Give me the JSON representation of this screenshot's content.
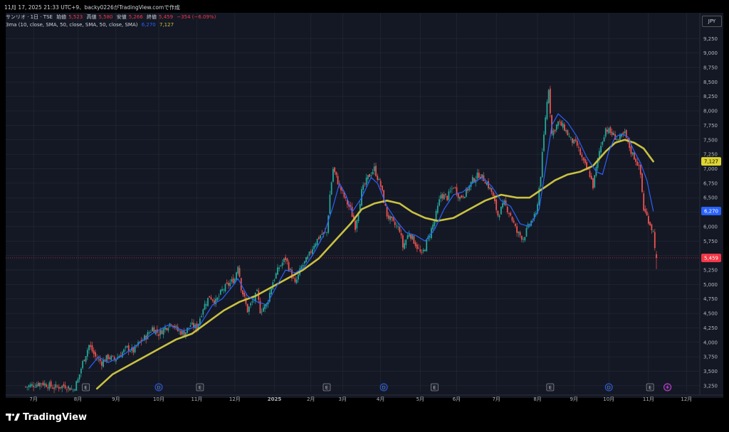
{
  "header": {
    "title": "11月 17, 2025 21:33 UTC+9、backy0226がTradingView.comで作成"
  },
  "symbol_line": {
    "name": "サンリオ · 1日 · TSE",
    "open_label": "始値",
    "open": "5,523",
    "high_label": "高値",
    "high": "5,580",
    "low_label": "安値",
    "low": "5,266",
    "close_label": "終値",
    "close": "5,459",
    "change": "−354 (−6.09%)"
  },
  "indicator_line": {
    "label": "3ma (10, close, SMA, 50, close, SMA, 50, close, SMA)",
    "value1": "6,270",
    "value2": "7,127"
  },
  "currency": "JPY",
  "brand": "TradingView",
  "colors": {
    "background": "#141824",
    "grid": "#2a2e39",
    "up": "#26a69a",
    "down": "#ef5350",
    "ma_fast": "#2962ff",
    "ma_slow": "#c9c142",
    "last_price": "#f23645"
  },
  "chart_data": {
    "type": "candlestick",
    "y_ticks": [
      "9,250",
      "9,000",
      "8,750",
      "8,500",
      "8,250",
      "8,000",
      "7,750",
      "7,500",
      "7,250",
      "7,000",
      "6,750",
      "6,500",
      "6,250",
      "6,000",
      "5,750",
      "5,500",
      "5,250",
      "5,000",
      "4,750",
      "4,500",
      "4,250",
      "4,000",
      "3,750",
      "3,500",
      "3,250"
    ],
    "y_tick_values": [
      9250,
      9000,
      8750,
      8500,
      8250,
      8000,
      7750,
      7500,
      7250,
      7000,
      6750,
      6500,
      6250,
      6000,
      5750,
      5500,
      5250,
      5000,
      4750,
      4500,
      4250,
      4000,
      3750,
      3500,
      3250
    ],
    "ylim": [
      3150,
      9450
    ],
    "x_labels": [
      {
        "label": "7月",
        "day": 5
      },
      {
        "label": "8月",
        "day": 33
      },
      {
        "label": "9月",
        "day": 57
      },
      {
        "label": "10月",
        "day": 84
      },
      {
        "label": "11月",
        "day": 108
      },
      {
        "label": "12月",
        "day": 132
      },
      {
        "label": "2025",
        "day": 157
      },
      {
        "label": "2月",
        "day": 180
      },
      {
        "label": "3月",
        "day": 200
      },
      {
        "label": "4月",
        "day": 224
      },
      {
        "label": "5月",
        "day": 249
      },
      {
        "label": "6月",
        "day": 272
      },
      {
        "label": "7月",
        "day": 297
      },
      {
        "label": "8月",
        "day": 323
      },
      {
        "label": "9月",
        "day": 346
      },
      {
        "label": "10月",
        "day": 368
      },
      {
        "label": "11月",
        "day": 393
      },
      {
        "label": "12月",
        "day": 417
      }
    ],
    "price_path": [
      [
        0,
        3230
      ],
      [
        10,
        3300
      ],
      [
        18,
        3220
      ],
      [
        25,
        3250
      ],
      [
        30,
        3180
      ],
      [
        33,
        3350
      ],
      [
        36,
        3650
      ],
      [
        40,
        3950
      ],
      [
        44,
        3750
      ],
      [
        48,
        3650
      ],
      [
        52,
        3750
      ],
      [
        56,
        3700
      ],
      [
        60,
        3800
      ],
      [
        64,
        3900
      ],
      [
        68,
        3850
      ],
      [
        72,
        4000
      ],
      [
        76,
        4100
      ],
      [
        80,
        4250
      ],
      [
        84,
        4150
      ],
      [
        88,
        4250
      ],
      [
        92,
        4350
      ],
      [
        96,
        4200
      ],
      [
        100,
        4150
      ],
      [
        104,
        4300
      ],
      [
        108,
        4250
      ],
      [
        112,
        4600
      ],
      [
        116,
        4800
      ],
      [
        120,
        4700
      ],
      [
        124,
        4900
      ],
      [
        128,
        5000
      ],
      [
        132,
        5100
      ],
      [
        134,
        5350
      ],
      [
        136,
        4950
      ],
      [
        140,
        4550
      ],
      [
        144,
        4750
      ],
      [
        146,
        4850
      ],
      [
        148,
        4550
      ],
      [
        152,
        4650
      ],
      [
        156,
        5050
      ],
      [
        160,
        5300
      ],
      [
        164,
        5450
      ],
      [
        168,
        5150
      ],
      [
        170,
        5000
      ],
      [
        174,
        5300
      ],
      [
        178,
        5450
      ],
      [
        182,
        5700
      ],
      [
        186,
        5850
      ],
      [
        190,
        5900
      ],
      [
        192,
        6550
      ],
      [
        194,
        7000
      ],
      [
        198,
        6700
      ],
      [
        202,
        6450
      ],
      [
        205,
        6300
      ],
      [
        208,
        6000
      ],
      [
        212,
        6600
      ],
      [
        216,
        6850
      ],
      [
        220,
        7000
      ],
      [
        224,
        6700
      ],
      [
        228,
        6200
      ],
      [
        232,
        6050
      ],
      [
        236,
        5950
      ],
      [
        238,
        5650
      ],
      [
        242,
        5900
      ],
      [
        246,
        5700
      ],
      [
        250,
        5500
      ],
      [
        254,
        5800
      ],
      [
        258,
        6100
      ],
      [
        262,
        6550
      ],
      [
        266,
        6500
      ],
      [
        270,
        6700
      ],
      [
        274,
        6500
      ],
      [
        278,
        6600
      ],
      [
        282,
        6800
      ],
      [
        286,
        6900
      ],
      [
        290,
        6800
      ],
      [
        294,
        6600
      ],
      [
        298,
        6200
      ],
      [
        302,
        6400
      ],
      [
        306,
        6200
      ],
      [
        310,
        5900
      ],
      [
        314,
        5800
      ],
      [
        318,
        6050
      ],
      [
        322,
        6200
      ],
      [
        325,
        6900
      ],
      [
        328,
        7900
      ],
      [
        330,
        8400
      ],
      [
        332,
        7600
      ],
      [
        336,
        7800
      ],
      [
        340,
        7700
      ],
      [
        344,
        7500
      ],
      [
        348,
        7400
      ],
      [
        352,
        7100
      ],
      [
        356,
        6900
      ],
      [
        358,
        6700
      ],
      [
        362,
        7300
      ],
      [
        366,
        7700
      ],
      [
        370,
        7600
      ],
      [
        374,
        7500
      ],
      [
        378,
        7600
      ],
      [
        382,
        7300
      ],
      [
        386,
        7100
      ],
      [
        388,
        6900
      ],
      [
        390,
        6300
      ],
      [
        394,
        6050
      ],
      [
        396,
        5900
      ],
      [
        398,
        5459
      ]
    ],
    "ma_fast_path": [
      [
        40,
        3550
      ],
      [
        46,
        3750
      ],
      [
        52,
        3650
      ],
      [
        60,
        3750
      ],
      [
        70,
        3950
      ],
      [
        80,
        4150
      ],
      [
        90,
        4300
      ],
      [
        100,
        4200
      ],
      [
        110,
        4300
      ],
      [
        118,
        4650
      ],
      [
        124,
        4750
      ],
      [
        130,
        4950
      ],
      [
        134,
        5100
      ],
      [
        140,
        4800
      ],
      [
        146,
        4700
      ],
      [
        152,
        4650
      ],
      [
        158,
        4950
      ],
      [
        164,
        5250
      ],
      [
        170,
        5200
      ],
      [
        176,
        5300
      ],
      [
        182,
        5550
      ],
      [
        188,
        5850
      ],
      [
        194,
        6350
      ],
      [
        198,
        6750
      ],
      [
        202,
        6550
      ],
      [
        206,
        6250
      ],
      [
        212,
        6500
      ],
      [
        218,
        6850
      ],
      [
        222,
        6750
      ],
      [
        228,
        6350
      ],
      [
        234,
        6100
      ],
      [
        240,
        5900
      ],
      [
        246,
        5850
      ],
      [
        252,
        5750
      ],
      [
        258,
        5950
      ],
      [
        264,
        6300
      ],
      [
        270,
        6550
      ],
      [
        276,
        6600
      ],
      [
        282,
        6750
      ],
      [
        288,
        6850
      ],
      [
        294,
        6700
      ],
      [
        300,
        6450
      ],
      [
        306,
        6350
      ],
      [
        312,
        6050
      ],
      [
        318,
        6000
      ],
      [
        324,
        6300
      ],
      [
        328,
        7000
      ],
      [
        332,
        7750
      ],
      [
        336,
        7950
      ],
      [
        342,
        7800
      ],
      [
        348,
        7550
      ],
      [
        354,
        7200
      ],
      [
        360,
        6950
      ],
      [
        364,
        6900
      ],
      [
        368,
        7300
      ],
      [
        372,
        7550
      ],
      [
        376,
        7600
      ],
      [
        380,
        7550
      ],
      [
        384,
        7300
      ],
      [
        388,
        7100
      ],
      [
        392,
        6800
      ],
      [
        396,
        6270
      ]
    ],
    "ma_slow_path": [
      [
        45,
        3200
      ],
      [
        55,
        3450
      ],
      [
        65,
        3600
      ],
      [
        75,
        3750
      ],
      [
        85,
        3900
      ],
      [
        95,
        4050
      ],
      [
        105,
        4150
      ],
      [
        115,
        4350
      ],
      [
        125,
        4550
      ],
      [
        135,
        4700
      ],
      [
        145,
        4800
      ],
      [
        155,
        4950
      ],
      [
        165,
        5100
      ],
      [
        175,
        5250
      ],
      [
        185,
        5450
      ],
      [
        195,
        5750
      ],
      [
        205,
        6050
      ],
      [
        212,
        6300
      ],
      [
        220,
        6400
      ],
      [
        228,
        6450
      ],
      [
        236,
        6400
      ],
      [
        244,
        6250
      ],
      [
        252,
        6150
      ],
      [
        260,
        6100
      ],
      [
        270,
        6150
      ],
      [
        280,
        6300
      ],
      [
        290,
        6450
      ],
      [
        300,
        6550
      ],
      [
        310,
        6500
      ],
      [
        318,
        6500
      ],
      [
        326,
        6650
      ],
      [
        334,
        6800
      ],
      [
        342,
        6900
      ],
      [
        350,
        6950
      ],
      [
        358,
        7050
      ],
      [
        366,
        7300
      ],
      [
        372,
        7450
      ],
      [
        378,
        7500
      ],
      [
        384,
        7450
      ],
      [
        390,
        7350
      ],
      [
        396,
        7127
      ]
    ],
    "markers": [
      {
        "type": "E",
        "day": 38
      },
      {
        "type": "D",
        "day": 84
      },
      {
        "type": "E",
        "day": 110
      },
      {
        "type": "E",
        "day": 190
      },
      {
        "type": "D",
        "day": 226
      },
      {
        "type": "E",
        "day": 258
      },
      {
        "type": "E",
        "day": 331
      },
      {
        "type": "D",
        "day": 368
      },
      {
        "type": "E",
        "day": 394
      },
      {
        "type": "S",
        "day": 405
      }
    ],
    "last_price": {
      "label": "5,459",
      "value": 5459
    },
    "ma_fast_last": {
      "label": "6,270",
      "value": 6270
    },
    "ma_slow_last": {
      "label": "7,127",
      "value": 7127
    }
  }
}
